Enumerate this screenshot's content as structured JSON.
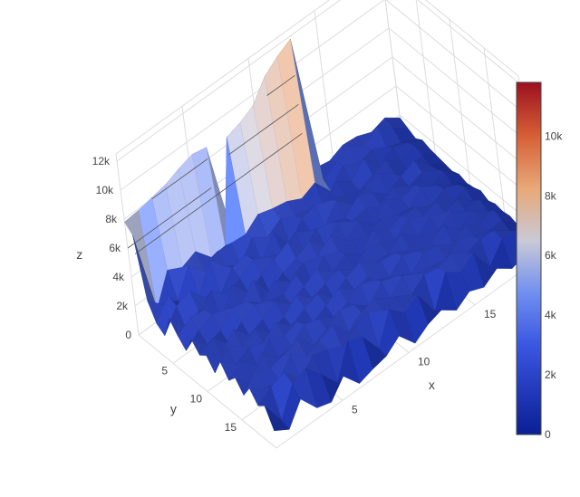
{
  "chart_data": {
    "type": "surface",
    "title": "",
    "axes": {
      "x": {
        "title": "x",
        "range": [
          0,
          20
        ],
        "ticks": [
          5,
          10,
          15
        ],
        "tick_labels": [
          "5",
          "10",
          "15"
        ]
      },
      "y": {
        "title": "y",
        "range": [
          0,
          20
        ],
        "ticks": [
          5,
          10,
          15
        ],
        "tick_labels": [
          "5",
          "10",
          "15"
        ]
      },
      "z": {
        "title": "z",
        "range": [
          0,
          12500
        ],
        "ticks": [
          0,
          2000,
          4000,
          6000,
          8000,
          10000,
          12000
        ],
        "tick_labels": [
          "0",
          "2k",
          "4k",
          "6k",
          "8k",
          "10k",
          "12k"
        ]
      }
    },
    "grid": true,
    "contours_z": true,
    "colorscale": {
      "name": "RdBu-like (blue to red)",
      "stops": [
        {
          "value": 0,
          "color": "#0a1f94"
        },
        {
          "value": 0.25,
          "color": "#3a55e0"
        },
        {
          "value": 0.4,
          "color": "#6f8ef0"
        },
        {
          "value": 0.55,
          "color": "#c9c9d6"
        },
        {
          "value": 0.7,
          "color": "#e8a877"
        },
        {
          "value": 0.85,
          "color": "#d65e36"
        },
        {
          "value": 1,
          "color": "#9c1020"
        }
      ]
    },
    "colorbar": {
      "range": [
        0,
        11800
      ],
      "ticks": [
        0,
        2000,
        4000,
        6000,
        8000,
        10000
      ],
      "tick_labels": [
        "0",
        "2k",
        "4k",
        "6k",
        "8k",
        "10k"
      ]
    },
    "surface_z": {
      "nx": 20,
      "ny": 20,
      "rows_by_y": [
        [
          7800,
          7900,
          8100,
          8300,
          8700,
          9000,
          8800,
          2200,
          2500,
          2800,
          3000,
          2400,
          2100,
          2500,
          2300,
          2700,
          2600,
          2200,
          2500,
          1800
        ],
        [
          7300,
          1500,
          3500,
          3000,
          3400,
          2300,
          2400,
          9200,
          9500,
          10000,
          11300,
          12000,
          12500,
          2100,
          2600,
          3000,
          2400,
          3000,
          2200,
          1500
        ],
        [
          3200,
          2200,
          1800,
          3500,
          2400,
          3100,
          3000,
          2900,
          3600,
          3300,
          3100,
          2600,
          3000,
          1700,
          2800,
          2200,
          2500,
          2000,
          1600,
          1200
        ],
        [
          2000,
          3300,
          1200,
          1700,
          3600,
          2500,
          1900,
          3100,
          2400,
          3000,
          2500,
          2300,
          1600,
          2800,
          2100,
          3000,
          1700,
          2400,
          2000,
          1500
        ],
        [
          1600,
          2900,
          3300,
          2100,
          1600,
          2800,
          3000,
          1800,
          3200,
          1600,
          2700,
          3000,
          2600,
          2300,
          1900,
          2300,
          2600,
          1800,
          2200,
          1300
        ],
        [
          3200,
          1900,
          2300,
          3000,
          2100,
          2500,
          3100,
          2600,
          2200,
          2900,
          2300,
          1900,
          3000,
          2000,
          2500,
          2800,
          2100,
          1500,
          2000,
          1200
        ],
        [
          2400,
          3000,
          2800,
          1400,
          3100,
          1900,
          2400,
          2800,
          3300,
          2000,
          2800,
          2600,
          2200,
          3000,
          2600,
          1800,
          2300,
          2700,
          1700,
          1100
        ],
        [
          1800,
          2500,
          2900,
          2600,
          2200,
          3200,
          1600,
          2300,
          2600,
          3100,
          2100,
          3000,
          2400,
          2600,
          2100,
          2700,
          2000,
          2300,
          1800,
          1000
        ],
        [
          3000,
          1900,
          2200,
          3100,
          2800,
          2000,
          2900,
          2100,
          2700,
          2400,
          3200,
          2200,
          2800,
          1900,
          2900,
          2300,
          2500,
          1700,
          2100,
          1200
        ],
        [
          2300,
          2800,
          1700,
          2500,
          3000,
          2600,
          2300,
          3000,
          1800,
          2900,
          2500,
          2600,
          2100,
          2700,
          2200,
          2000,
          2800,
          2200,
          1600,
          1000
        ],
        [
          2700,
          2100,
          3100,
          2000,
          2400,
          2900,
          2100,
          2600,
          3100,
          2200,
          2700,
          2000,
          3000,
          2300,
          2600,
          2500,
          1900,
          2400,
          2000,
          1100
        ],
        [
          1900,
          3000,
          2400,
          2800,
          1900,
          2300,
          3100,
          2200,
          2500,
          2800,
          2100,
          2900,
          2500,
          2100,
          2800,
          2300,
          2600,
          1800,
          2200,
          1300
        ],
        [
          3100,
          2200,
          2700,
          2300,
          3000,
          2100,
          2600,
          2900,
          2000,
          2600,
          3000,
          2300,
          2200,
          2900,
          2000,
          2700,
          2300,
          2500,
          1700,
          1000
        ],
        [
          2200,
          2900,
          1800,
          3000,
          2500,
          2800,
          2000,
          2500,
          3000,
          2200,
          2400,
          2800,
          2700,
          2200,
          2500,
          2100,
          2800,
          2000,
          2200,
          1200
        ],
        [
          2800,
          1700,
          3100,
          2100,
          2200,
          3000,
          2700,
          2100,
          2400,
          3000,
          2600,
          2100,
          2900,
          2500,
          2300,
          2900,
          1900,
          2500,
          1800,
          1100
        ],
        [
          2000,
          3100,
          2500,
          2700,
          3100,
          2000,
          2400,
          3000,
          2700,
          1900,
          2900,
          2600,
          2000,
          2800,
          2600,
          2000,
          2600,
          2100,
          2300,
          1200
        ],
        [
          2900,
          2200,
          2000,
          3200,
          2300,
          2700,
          3100,
          1900,
          2600,
          2800,
          2200,
          3000,
          2500,
          2300,
          2100,
          2800,
          2300,
          1900,
          2000,
          1000
        ],
        [
          2100,
          2700,
          3000,
          1800,
          2800,
          2500,
          2000,
          2700,
          3000,
          2400,
          2700,
          2100,
          2800,
          2600,
          2900,
          2200,
          2500,
          2400,
          1700,
          1100
        ],
        [
          2500,
          800,
          2600,
          3000,
          1900,
          600,
          2800,
          2400,
          900,
          2900,
          2000,
          2500,
          700,
          2700,
          2000,
          2600,
          1000,
          2200,
          2100,
          900
        ],
        [
          1200,
          600,
          2000,
          700,
          400,
          1500,
          300,
          600,
          800,
          1500,
          300,
          900,
          1200,
          500,
          1100,
          700,
          1300,
          600,
          900,
          500
        ]
      ]
    }
  }
}
